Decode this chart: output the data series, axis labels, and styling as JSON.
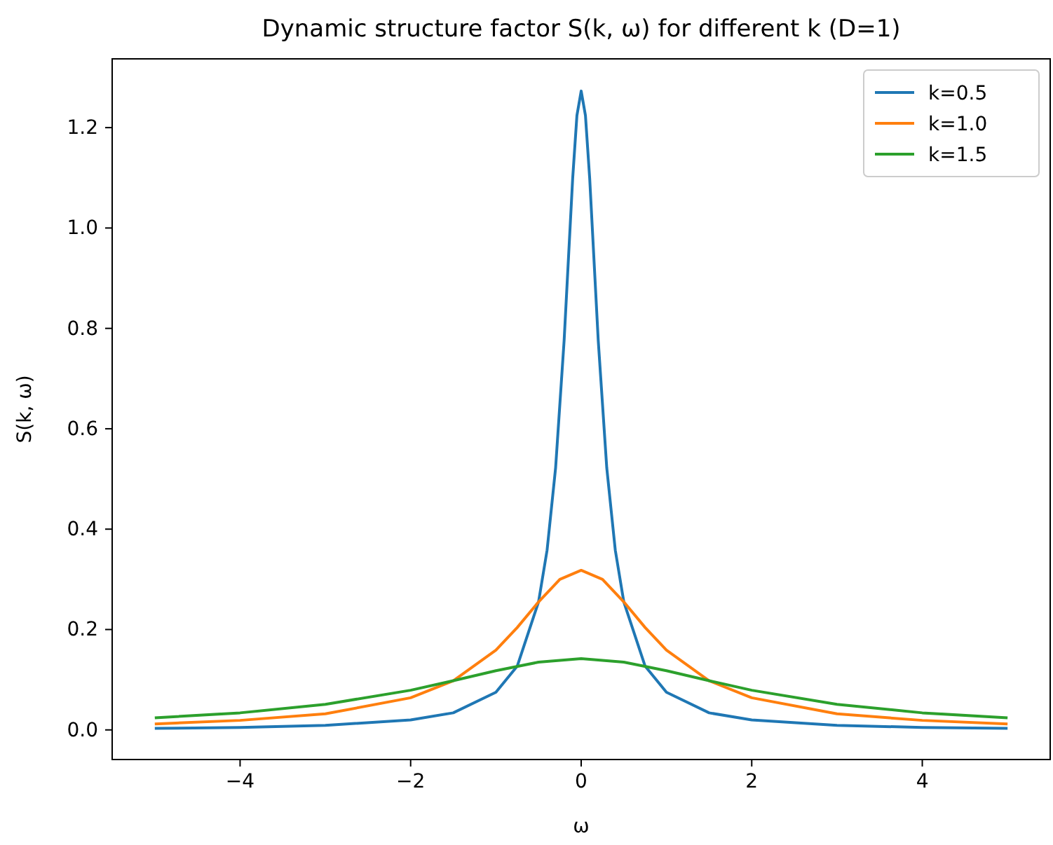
{
  "chart_data": {
    "type": "line",
    "title": "Dynamic structure factor S(k, ω) for different k (D=1)",
    "xlabel": "ω",
    "ylabel": "S(k, ω)",
    "xlim": [
      -5.5,
      5.5
    ],
    "ylim": [
      -0.059,
      1.337
    ],
    "xticks": [
      {
        "value": -4,
        "label": "−4"
      },
      {
        "value": -2,
        "label": "−2"
      },
      0,
      2,
      {
        "value": 4,
        "label": "4"
      }
    ],
    "yticks": [
      {
        "value": 0,
        "label": "0.0"
      },
      {
        "value": 0.2,
        "label": "0.2"
      },
      {
        "value": 0.4,
        "label": "0.4"
      },
      {
        "value": 0.6,
        "label": "0.6"
      },
      {
        "value": 0.8,
        "label": "0.8"
      },
      {
        "value": 1.0,
        "label": "1.0"
      },
      {
        "value": 1.2,
        "label": "1.2"
      }
    ],
    "grid": false,
    "legend": "top right",
    "marker": "none",
    "line_style": "solid",
    "series": [
      {
        "name": "k=0.5",
        "color": "#1f77b4",
        "x": [
          -5,
          -4,
          -3,
          -2,
          -1.5,
          -1,
          -0.75,
          -0.5,
          -0.4,
          -0.3,
          -0.2,
          -0.1,
          -0.05,
          0,
          0.05,
          0.1,
          0.2,
          0.3,
          0.4,
          0.5,
          0.75,
          1,
          1.5,
          2,
          3,
          4,
          5
        ],
        "values": [
          0.003,
          0.005,
          0.009,
          0.02,
          0.034,
          0.075,
          0.127,
          0.255,
          0.358,
          0.522,
          0.776,
          1.098,
          1.224,
          1.273,
          1.224,
          1.098,
          0.776,
          0.522,
          0.358,
          0.255,
          0.127,
          0.075,
          0.034,
          0.02,
          0.009,
          0.005,
          0.003
        ]
      },
      {
        "name": "k=1.0",
        "color": "#ff7f0e",
        "x": [
          -5,
          -4,
          -3,
          -2,
          -1.5,
          -1,
          -0.75,
          -0.5,
          -0.25,
          0,
          0.25,
          0.5,
          0.75,
          1,
          1.5,
          2,
          3,
          4,
          5
        ],
        "values": [
          0.012,
          0.019,
          0.032,
          0.064,
          0.098,
          0.159,
          0.204,
          0.255,
          0.3,
          0.318,
          0.3,
          0.255,
          0.204,
          0.159,
          0.098,
          0.064,
          0.032,
          0.019,
          0.012
        ]
      },
      {
        "name": "k=1.5",
        "color": "#2ca02c",
        "x": [
          -5,
          -4,
          -3,
          -2,
          -1.5,
          -1,
          -0.5,
          0,
          0.5,
          1,
          1.5,
          2,
          3,
          4,
          5
        ],
        "values": [
          0.024,
          0.034,
          0.051,
          0.079,
          0.098,
          0.118,
          0.135,
          0.142,
          0.135,
          0.118,
          0.098,
          0.079,
          0.051,
          0.034,
          0.024
        ]
      }
    ]
  }
}
